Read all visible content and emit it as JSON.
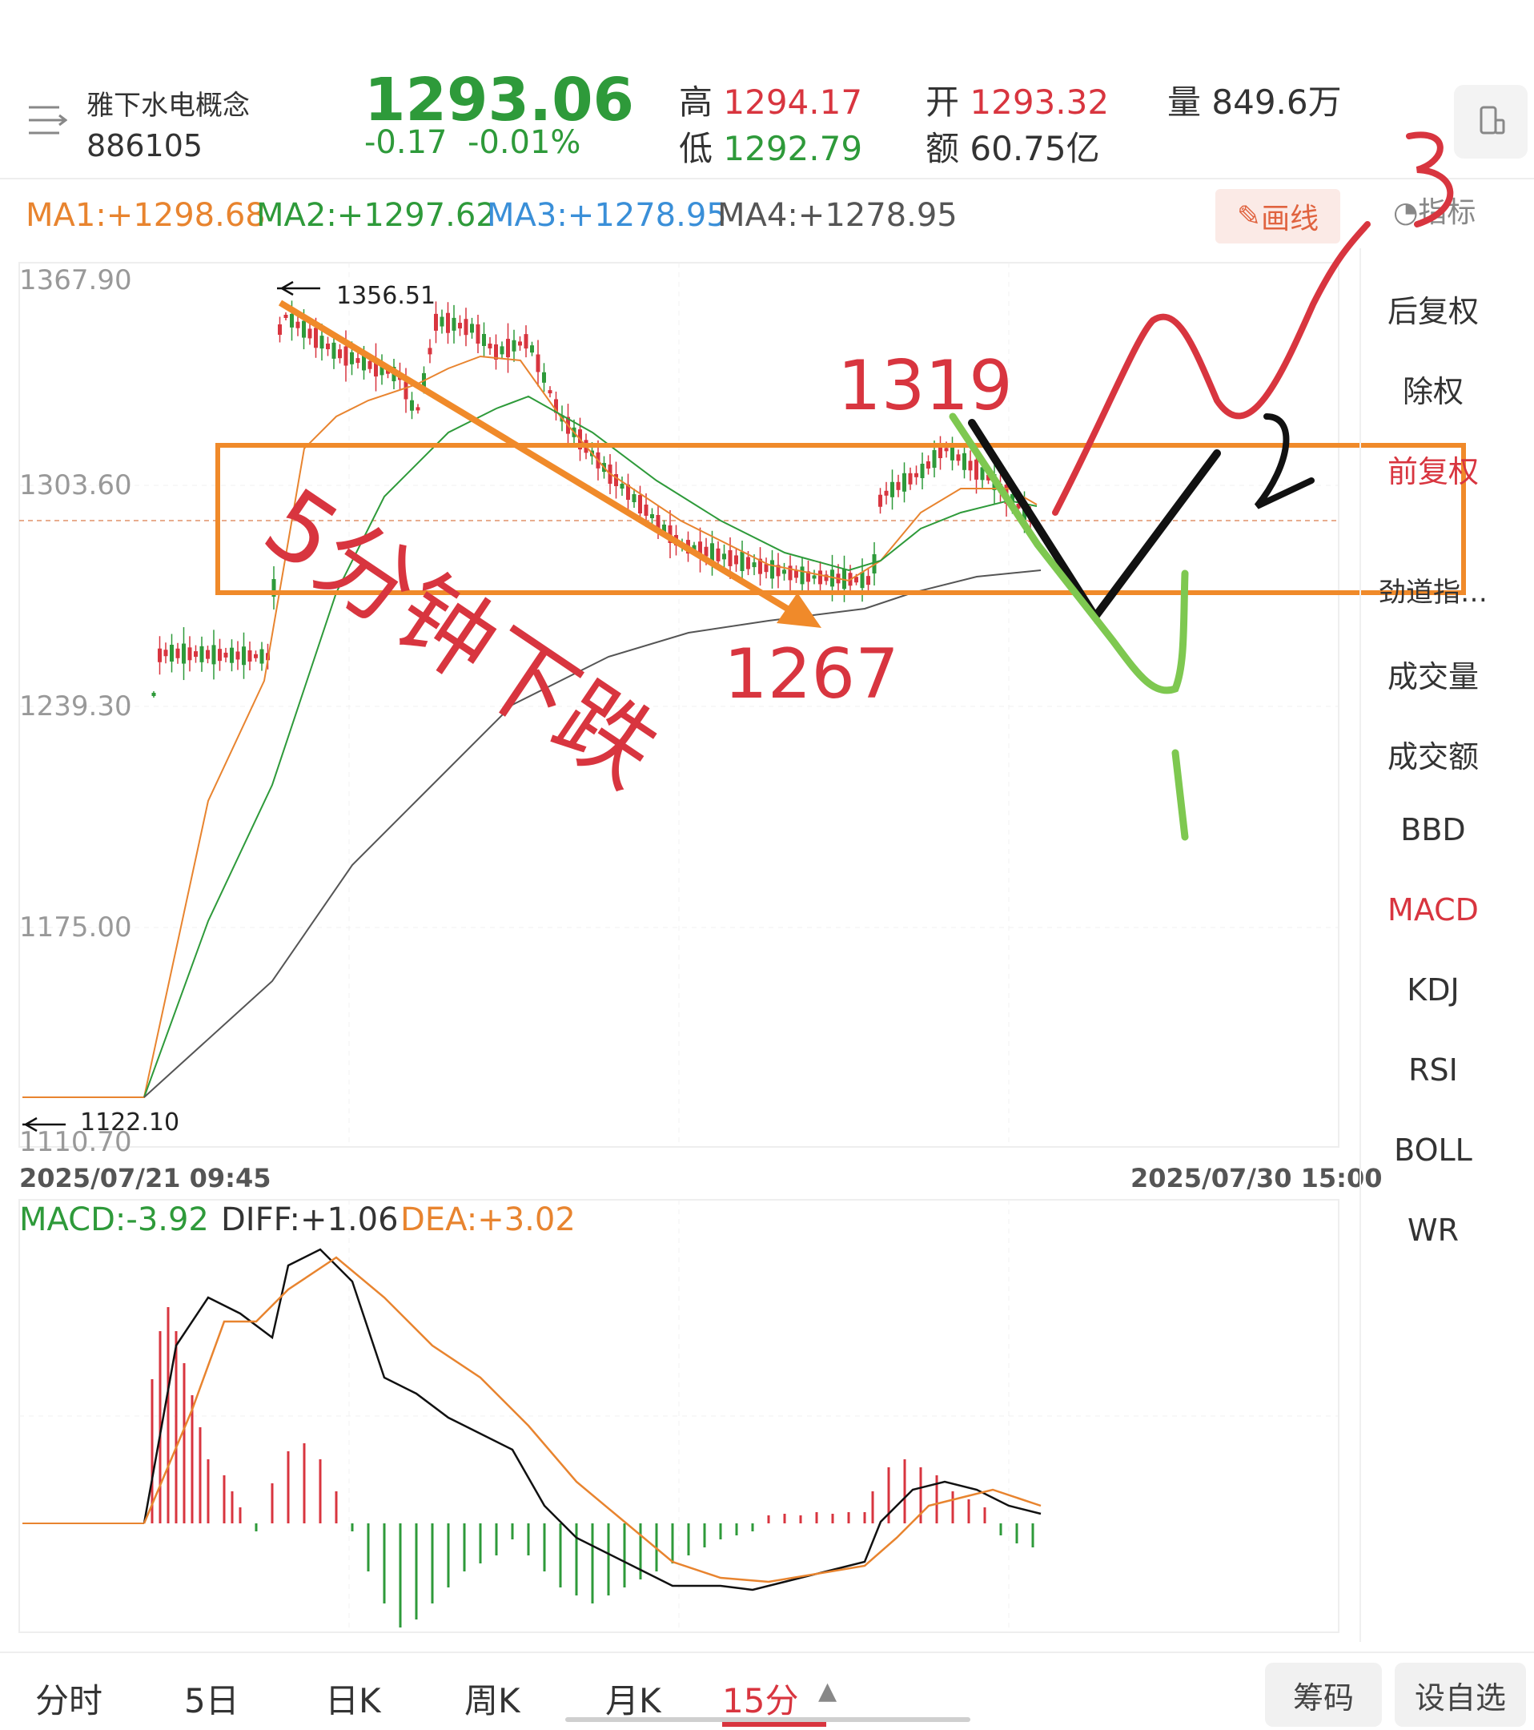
{
  "header": {
    "name": "雅下水电概念",
    "code": "886105",
    "price": "1293.06",
    "change": "-0.17",
    "change_pct": "-0.01%",
    "high_label": "高",
    "high": "1294.17",
    "low_label": "低",
    "low": "1292.79",
    "open_label": "开",
    "open": "1293.32",
    "amount_label": "额",
    "amount": "60.75亿",
    "volume_label": "量",
    "volume": "849.6万"
  },
  "ma": {
    "ma1": "MA1:+1298.68",
    "ma2": "MA2:+1297.62",
    "ma3": "MA3:+1278.95",
    "ma4": "MA4:+1278.95",
    "draw_label": "画线",
    "indicator_label": "指标"
  },
  "axis": {
    "y_ticks": [
      "1367.90",
      "1303.60",
      "1239.30",
      "1175.00",
      "1110.70"
    ],
    "start_time": "2025/07/21 09:45",
    "end_time": "2025/07/30 15:00",
    "high_mark": "1356.51",
    "low_mark": "1122.10"
  },
  "annotations": {
    "text_main": "5分钟下跌",
    "n1319": "1319",
    "n1267": "1267",
    "n1": "1",
    "n2": "2",
    "n3": "3"
  },
  "macd": {
    "macd": "MACD:-3.92",
    "diff": "DIFF:+1.06",
    "dea": "DEA:+3.02"
  },
  "sidebar": [
    "后复权",
    "除权",
    "前复权",
    "劲道指…",
    "成交量",
    "成交额",
    "BBD",
    "MACD",
    "KDJ",
    "RSI",
    "BOLL",
    "WR"
  ],
  "tabs": [
    "分时",
    "5日",
    "日K",
    "周K",
    "月K",
    "15分"
  ],
  "bottom_buttons": [
    "筹码",
    "设自选"
  ],
  "colors": {
    "up": "#d8353f",
    "down": "#2e9a3a",
    "ma1": "#e8842f",
    "ma2": "#2e9a3a",
    "ma3": "#3a8fd8",
    "ma4": "#555555",
    "accent": "#d8353f"
  }
}
